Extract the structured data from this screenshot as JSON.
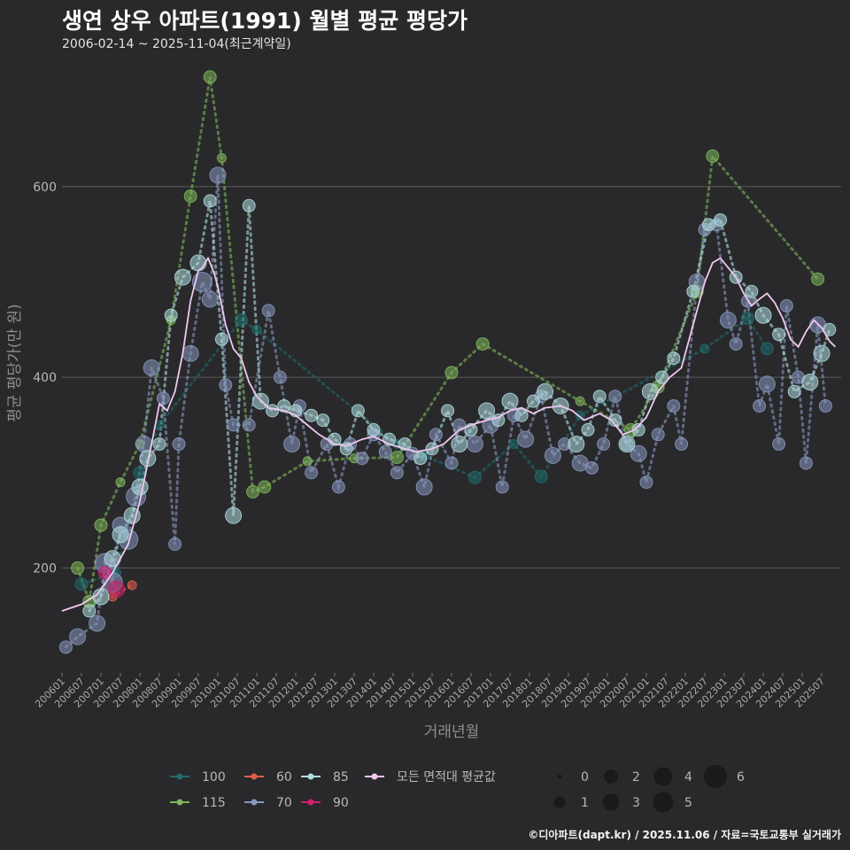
{
  "header": {
    "title": "생연 상우 아파트(1991) 월별 평균 평당가",
    "subtitle": "2006-02-14 ~ 2025-11-04(최근계약일)"
  },
  "footer": {
    "credit": "©디아파트(dapt.kr) / 2025.11.06 / 자료=국토교통부 실거래가"
  },
  "colors": {
    "background": "#29292b",
    "grid": "#5b5b5b",
    "s100": "#1e6b6b",
    "s115": "#7fb85a",
    "s60": "#e0604a",
    "s70": "#8898c0",
    "s85": "#b0dde0",
    "s90": "#d21e6e",
    "avg": "#f0c8f0"
  },
  "chart_data": {
    "type": "scatter",
    "title": "생연 상우 아파트(1991) 월별 평균 평당가",
    "xlabel": "거래년월",
    "ylabel": "평균 평당가(만 원)",
    "ylim": [
      90,
      740
    ],
    "yticks": [
      200,
      400,
      600
    ],
    "xticks": [
      "200601",
      "200607",
      "200701",
      "200707",
      "200801",
      "200807",
      "200901",
      "200907",
      "201001",
      "201007",
      "201101",
      "201107",
      "201201",
      "201207",
      "201301",
      "201307",
      "201401",
      "201407",
      "201501",
      "201507",
      "201601",
      "201607",
      "201701",
      "201707",
      "201801",
      "201807",
      "201901",
      "201907",
      "202001",
      "202007",
      "202101",
      "202107",
      "202201",
      "202207",
      "202301",
      "202307",
      "202401",
      "202407",
      "202501",
      "202507"
    ],
    "series": [
      {
        "name": "100",
        "color": "#1e6b6b",
        "points": [
          [
            2006.5,
            183,
            2
          ],
          [
            2007.4,
            195,
            1
          ],
          [
            2008.0,
            300,
            2
          ],
          [
            2008.5,
            350,
            1
          ],
          [
            2010.6,
            460,
            2
          ],
          [
            2011.0,
            450,
            1
          ],
          [
            2014.6,
            330,
            1
          ],
          [
            2015.3,
            318,
            1
          ],
          [
            2016.6,
            295,
            2
          ],
          [
            2017.6,
            330,
            1
          ],
          [
            2018.3,
            296,
            2
          ],
          [
            2019.3,
            360,
            1
          ],
          [
            2022.5,
            430,
            1
          ],
          [
            2023.6,
            462,
            2
          ],
          [
            2024.1,
            430,
            2
          ]
        ]
      },
      {
        "name": "115",
        "color": "#7fb85a",
        "points": [
          [
            2006.4,
            200,
            2
          ],
          [
            2006.7,
            165,
            2
          ],
          [
            2007.0,
            245,
            2
          ],
          [
            2007.5,
            290,
            1
          ],
          [
            2008.0,
            330,
            1
          ],
          [
            2008.8,
            460,
            1
          ],
          [
            2009.3,
            590,
            2
          ],
          [
            2009.8,
            715,
            2
          ],
          [
            2010.1,
            630,
            1
          ],
          [
            2010.9,
            280,
            2
          ],
          [
            2011.2,
            285,
            2
          ],
          [
            2012.3,
            312,
            1
          ],
          [
            2013.5,
            315,
            1
          ],
          [
            2014.6,
            316,
            2
          ],
          [
            2016.0,
            405,
            2
          ],
          [
            2016.8,
            435,
            2
          ],
          [
            2019.3,
            375,
            1
          ],
          [
            2020.6,
            345,
            2
          ],
          [
            2021.3,
            390,
            2
          ],
          [
            2022.3,
            490,
            2
          ],
          [
            2022.7,
            632,
            2
          ],
          [
            2025.4,
            503,
            2
          ]
        ]
      },
      {
        "name": "60",
        "color": "#e0604a",
        "points": [
          [
            2007.3,
            170,
            1
          ],
          [
            2007.8,
            182,
            1
          ]
        ]
      },
      {
        "name": "70",
        "color": "#8898c0",
        "points": [
          [
            2006.1,
            117,
            2
          ],
          [
            2006.4,
            128,
            3
          ],
          [
            2006.9,
            142,
            3
          ],
          [
            2007.1,
            205,
            4
          ],
          [
            2007.3,
            185,
            4
          ],
          [
            2007.5,
            245,
            3
          ],
          [
            2007.7,
            230,
            4
          ],
          [
            2007.9,
            275,
            4
          ],
          [
            2008.1,
            330,
            3
          ],
          [
            2008.3,
            410,
            3
          ],
          [
            2008.6,
            378,
            2
          ],
          [
            2008.9,
            225,
            2
          ],
          [
            2009.0,
            330,
            2
          ],
          [
            2009.3,
            425,
            3
          ],
          [
            2009.6,
            500,
            4
          ],
          [
            2009.8,
            482,
            3
          ],
          [
            2010.0,
            612,
            3
          ],
          [
            2010.2,
            392,
            2
          ],
          [
            2010.4,
            350,
            2
          ],
          [
            2010.8,
            350,
            2
          ],
          [
            2011.3,
            470,
            2
          ],
          [
            2011.6,
            400,
            2
          ],
          [
            2011.9,
            330,
            3
          ],
          [
            2012.1,
            370,
            2
          ],
          [
            2012.4,
            300,
            2
          ],
          [
            2012.8,
            330,
            2
          ],
          [
            2013.1,
            285,
            2
          ],
          [
            2013.4,
            330,
            2
          ],
          [
            2013.7,
            315,
            2
          ],
          [
            2014.0,
            340,
            2
          ],
          [
            2014.3,
            322,
            2
          ],
          [
            2014.6,
            300,
            2
          ],
          [
            2015.0,
            320,
            2
          ],
          [
            2015.3,
            285,
            3
          ],
          [
            2015.6,
            340,
            2
          ],
          [
            2016.0,
            310,
            2
          ],
          [
            2016.2,
            350,
            2
          ],
          [
            2016.6,
            330,
            3
          ],
          [
            2017.0,
            350,
            3
          ],
          [
            2017.3,
            285,
            2
          ],
          [
            2017.6,
            360,
            2
          ],
          [
            2017.9,
            335,
            3
          ],
          [
            2018.3,
            380,
            2
          ],
          [
            2018.6,
            318,
            3
          ],
          [
            2018.9,
            330,
            2
          ],
          [
            2019.3,
            310,
            3
          ],
          [
            2019.6,
            305,
            2
          ],
          [
            2019.9,
            330,
            2
          ],
          [
            2020.2,
            380,
            2
          ],
          [
            2020.5,
            330,
            2
          ],
          [
            2020.8,
            320,
            3
          ],
          [
            2021.0,
            290,
            2
          ],
          [
            2021.3,
            340,
            2
          ],
          [
            2021.7,
            370,
            2
          ],
          [
            2021.9,
            330,
            2
          ],
          [
            2022.3,
            500,
            3
          ],
          [
            2022.5,
            555,
            2
          ],
          [
            2022.8,
            560,
            2
          ],
          [
            2023.1,
            460,
            3
          ],
          [
            2023.3,
            435,
            2
          ],
          [
            2023.6,
            480,
            2
          ],
          [
            2023.9,
            370,
            2
          ],
          [
            2024.1,
            393,
            3
          ],
          [
            2024.4,
            330,
            2
          ],
          [
            2024.6,
            475,
            2
          ],
          [
            2024.9,
            400,
            2
          ],
          [
            2025.1,
            310,
            2
          ],
          [
            2025.4,
            455,
            3
          ],
          [
            2025.6,
            370,
            2
          ]
        ]
      },
      {
        "name": "85",
        "color": "#b0dde0",
        "points": [
          [
            2006.7,
            155,
            2
          ],
          [
            2007.0,
            170,
            3
          ],
          [
            2007.3,
            210,
            3
          ],
          [
            2007.5,
            235,
            3
          ],
          [
            2007.8,
            255,
            3
          ],
          [
            2008.0,
            285,
            3
          ],
          [
            2008.2,
            315,
            3
          ],
          [
            2008.5,
            330,
            2
          ],
          [
            2008.8,
            465,
            2
          ],
          [
            2009.1,
            505,
            3
          ],
          [
            2009.5,
            520,
            3
          ],
          [
            2009.8,
            585,
            2
          ],
          [
            2010.1,
            440,
            2
          ],
          [
            2010.4,
            255,
            3
          ],
          [
            2010.8,
            580,
            2
          ],
          [
            2011.1,
            375,
            3
          ],
          [
            2011.4,
            365,
            2
          ],
          [
            2011.7,
            370,
            2
          ],
          [
            2012.0,
            365,
            2
          ],
          [
            2012.4,
            360,
            2
          ],
          [
            2012.7,
            355,
            2
          ],
          [
            2013.0,
            335,
            2
          ],
          [
            2013.3,
            325,
            2
          ],
          [
            2013.6,
            365,
            2
          ],
          [
            2014.0,
            345,
            2
          ],
          [
            2014.4,
            335,
            2
          ],
          [
            2014.8,
            330,
            2
          ],
          [
            2015.2,
            315,
            2
          ],
          [
            2015.5,
            325,
            2
          ],
          [
            2015.9,
            365,
            2
          ],
          [
            2016.2,
            330,
            3
          ],
          [
            2016.5,
            345,
            2
          ],
          [
            2016.9,
            365,
            3
          ],
          [
            2017.2,
            355,
            2
          ],
          [
            2017.5,
            375,
            3
          ],
          [
            2017.8,
            360,
            2
          ],
          [
            2018.1,
            375,
            2
          ],
          [
            2018.4,
            385,
            3
          ],
          [
            2018.8,
            370,
            3
          ],
          [
            2019.2,
            330,
            3
          ],
          [
            2019.5,
            345,
            2
          ],
          [
            2019.8,
            380,
            2
          ],
          [
            2020.2,
            355,
            2
          ],
          [
            2020.5,
            330,
            3
          ],
          [
            2020.8,
            345,
            2
          ],
          [
            2021.1,
            385,
            3
          ],
          [
            2021.4,
            400,
            2
          ],
          [
            2021.7,
            420,
            2
          ],
          [
            2022.2,
            490,
            2
          ],
          [
            2022.6,
            560,
            2
          ],
          [
            2022.9,
            565,
            2
          ],
          [
            2023.3,
            505,
            2
          ],
          [
            2023.7,
            490,
            2
          ],
          [
            2024.0,
            465,
            3
          ],
          [
            2024.4,
            445,
            2
          ],
          [
            2024.8,
            385,
            2
          ],
          [
            2025.2,
            395,
            3
          ],
          [
            2025.5,
            425,
            3
          ],
          [
            2025.7,
            450,
            2
          ]
        ]
      },
      {
        "name": "90",
        "color": "#d21e6e",
        "points": [
          [
            2007.1,
            195,
            2
          ],
          [
            2007.4,
            178,
            3
          ]
        ]
      },
      {
        "name": "모든 면적대 평균값",
        "color": "#f0c8f0",
        "line": [
          [
            2006.0,
            155
          ],
          [
            2006.5,
            162
          ],
          [
            2006.9,
            172
          ],
          [
            2007.3,
            195
          ],
          [
            2007.7,
            225
          ],
          [
            2008.0,
            270
          ],
          [
            2008.3,
            330
          ],
          [
            2008.5,
            372
          ],
          [
            2008.7,
            365
          ],
          [
            2008.9,
            385
          ],
          [
            2009.1,
            425
          ],
          [
            2009.3,
            480
          ],
          [
            2009.5,
            512
          ],
          [
            2009.6,
            515
          ],
          [
            2009.75,
            525
          ],
          [
            2009.9,
            510
          ],
          [
            2010.0,
            495
          ],
          [
            2010.2,
            455
          ],
          [
            2010.4,
            430
          ],
          [
            2010.6,
            420
          ],
          [
            2010.8,
            395
          ],
          [
            2011.0,
            380
          ],
          [
            2011.3,
            368
          ],
          [
            2011.7,
            365
          ],
          [
            2012.0,
            360
          ],
          [
            2012.3,
            350
          ],
          [
            2012.6,
            340
          ],
          [
            2013.0,
            330
          ],
          [
            2013.3,
            328
          ],
          [
            2013.7,
            335
          ],
          [
            2014.0,
            338
          ],
          [
            2014.4,
            330
          ],
          [
            2014.8,
            325
          ],
          [
            2015.1,
            322
          ],
          [
            2015.5,
            325
          ],
          [
            2015.8,
            330
          ],
          [
            2016.2,
            345
          ],
          [
            2016.5,
            350
          ],
          [
            2016.9,
            355
          ],
          [
            2017.2,
            358
          ],
          [
            2017.5,
            365
          ],
          [
            2017.8,
            368
          ],
          [
            2018.1,
            362
          ],
          [
            2018.4,
            368
          ],
          [
            2018.8,
            370
          ],
          [
            2019.1,
            365
          ],
          [
            2019.4,
            355
          ],
          [
            2019.8,
            362
          ],
          [
            2020.1,
            355
          ],
          [
            2020.4,
            340
          ],
          [
            2020.7,
            345
          ],
          [
            2021.0,
            358
          ],
          [
            2021.3,
            385
          ],
          [
            2021.6,
            400
          ],
          [
            2021.9,
            410
          ],
          [
            2022.2,
            455
          ],
          [
            2022.5,
            500
          ],
          [
            2022.7,
            520
          ],
          [
            2022.9,
            525
          ],
          [
            2023.1,
            515
          ],
          [
            2023.3,
            505
          ],
          [
            2023.5,
            488
          ],
          [
            2023.7,
            475
          ],
          [
            2023.9,
            482
          ],
          [
            2024.1,
            488
          ],
          [
            2024.3,
            478
          ],
          [
            2024.5,
            462
          ],
          [
            2024.7,
            440
          ],
          [
            2024.9,
            432
          ],
          [
            2025.1,
            448
          ],
          [
            2025.3,
            460
          ],
          [
            2025.5,
            452
          ],
          [
            2025.7,
            438
          ],
          [
            2025.85,
            432
          ]
        ]
      }
    ],
    "legend": {
      "series_labels": [
        "100",
        "60",
        "85",
        "모든 면적대 평균값",
        "115",
        "70",
        "90"
      ],
      "size_title": "",
      "size_labels": [
        "0",
        "2",
        "4",
        "6",
        "1",
        "3",
        "5"
      ]
    }
  }
}
